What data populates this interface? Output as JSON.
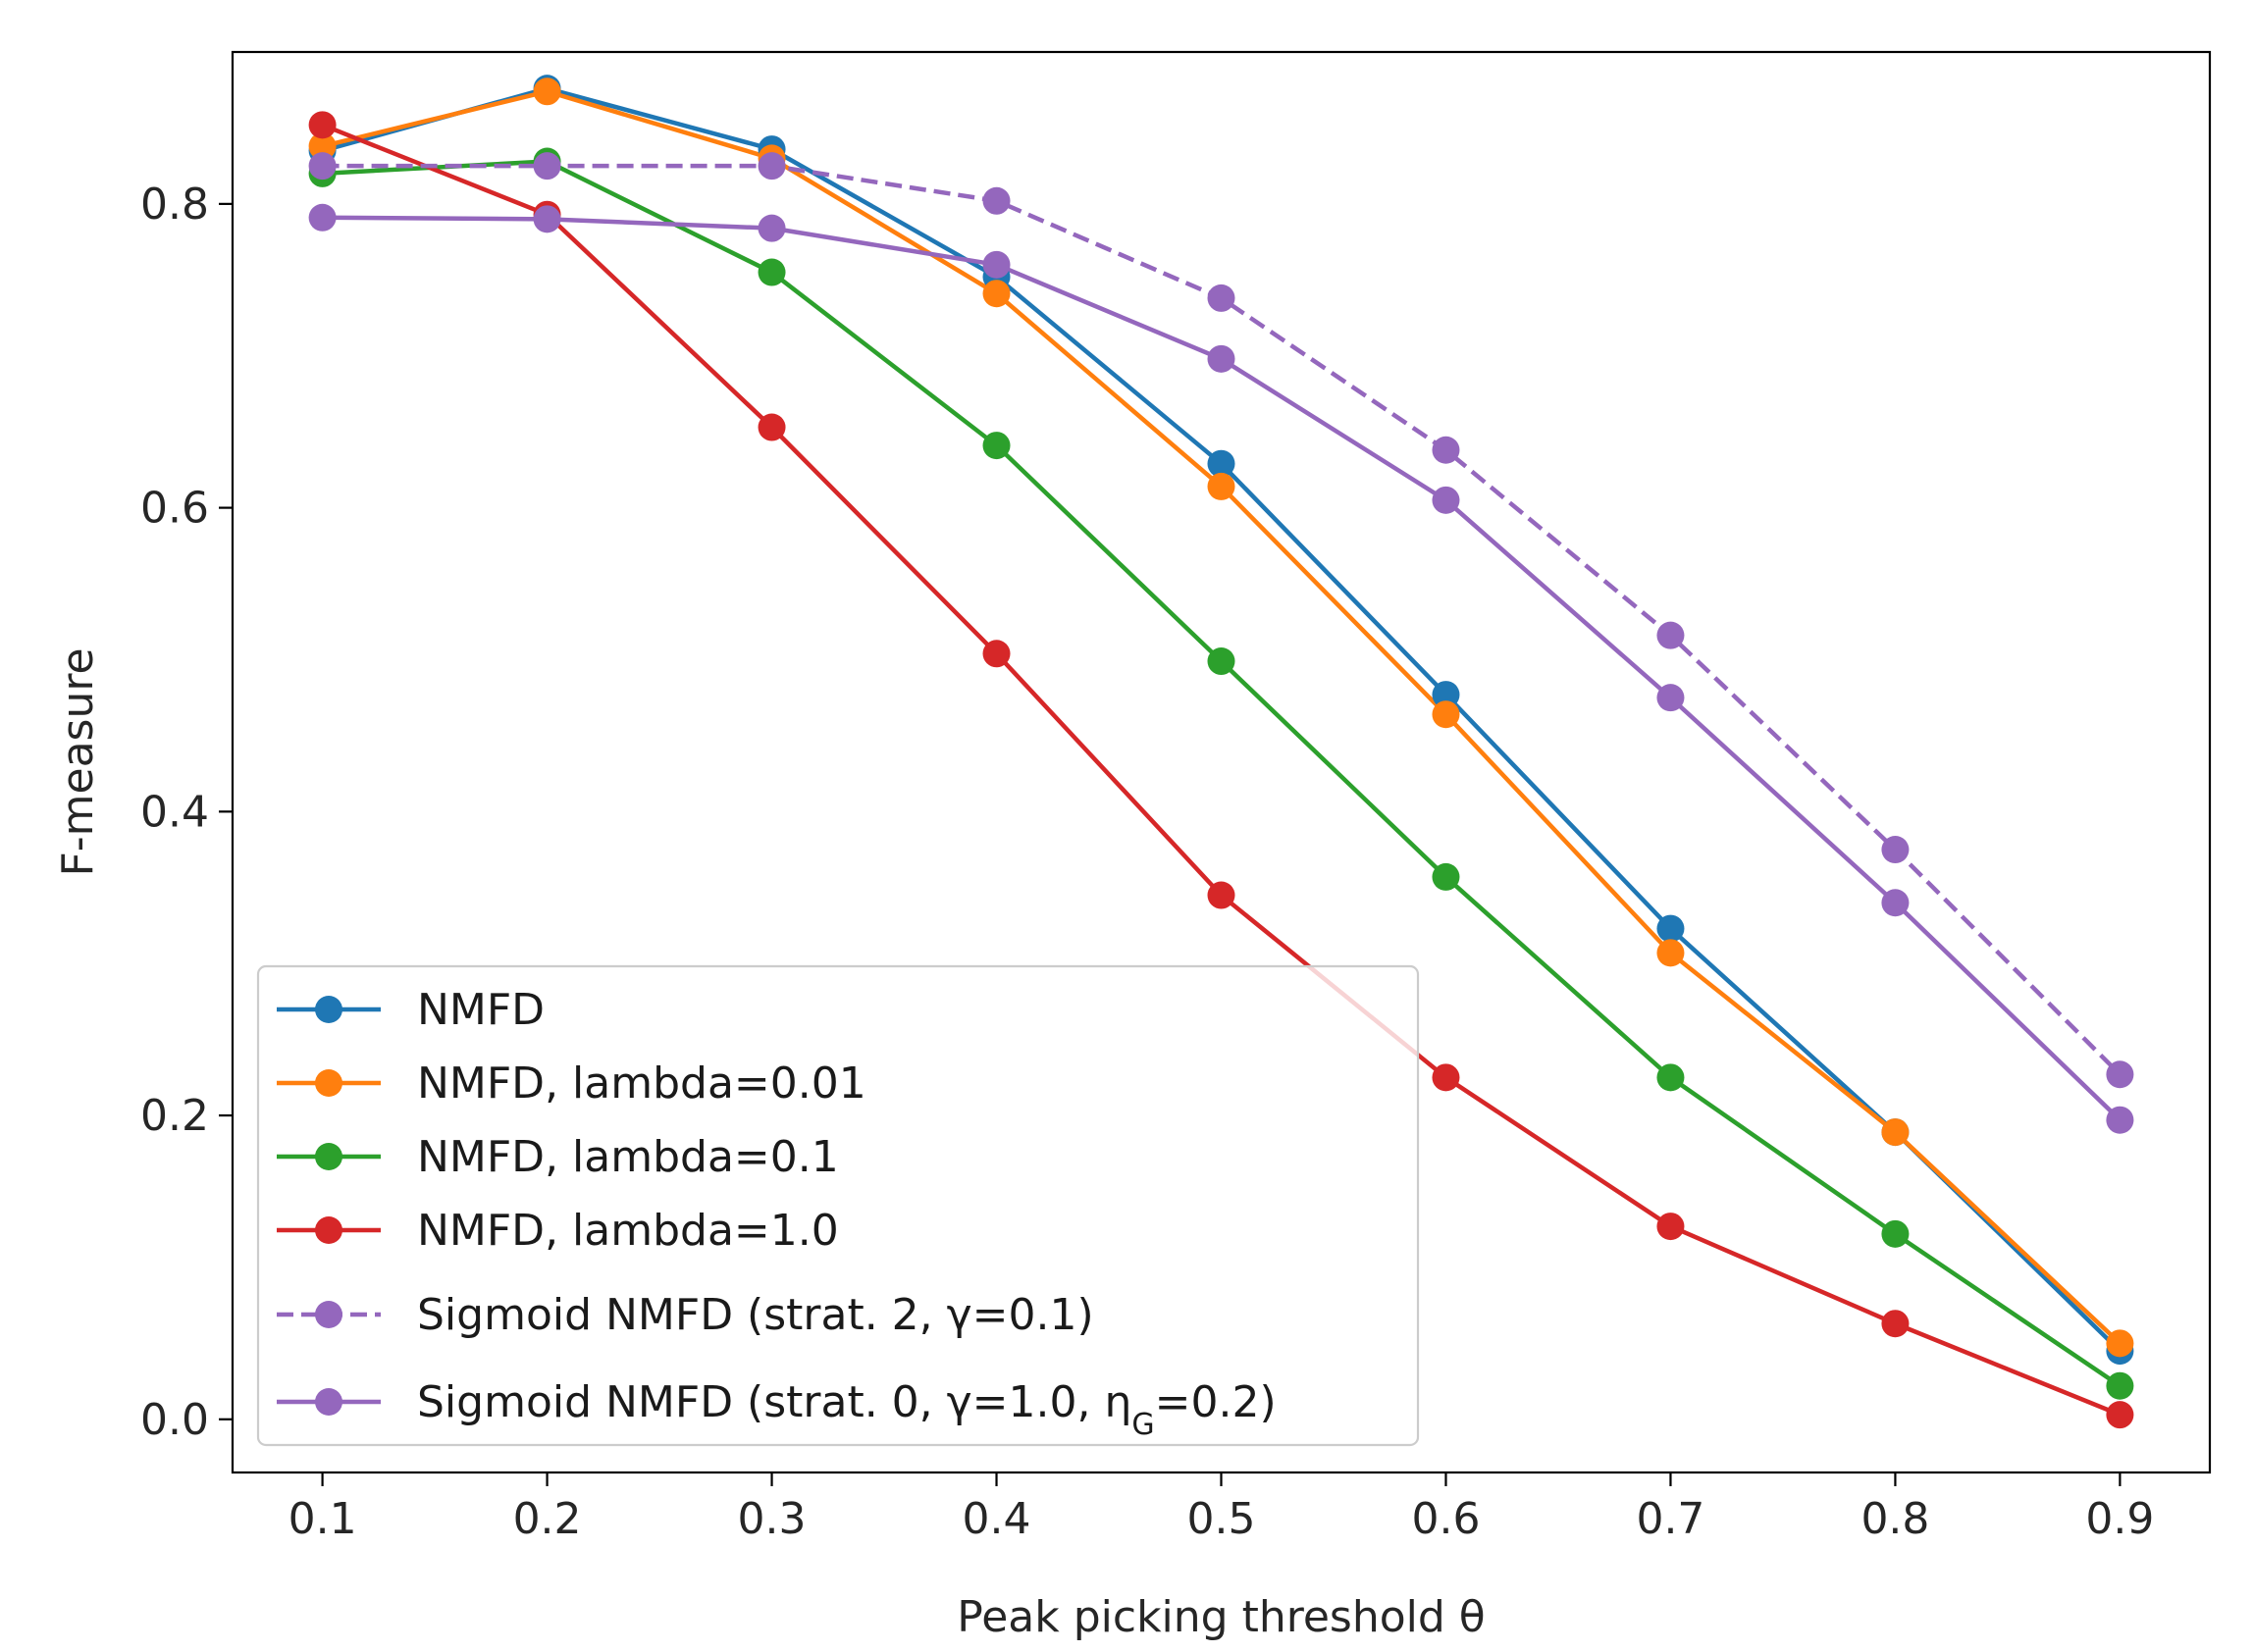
{
  "chart_data": {
    "type": "line",
    "title": "",
    "xlabel": "Peak picking threshold θ",
    "ylabel": "F-measure",
    "x": [
      0.1,
      0.2,
      0.3,
      0.4,
      0.5,
      0.6,
      0.7,
      0.8,
      0.9
    ],
    "xlim": [
      0.06,
      0.94
    ],
    "ylim": [
      -0.035,
      0.9
    ],
    "xticks": [
      "0.1",
      "0.2",
      "0.3",
      "0.4",
      "0.5",
      "0.6",
      "0.7",
      "0.8",
      "0.9"
    ],
    "yticks": [
      "0.0",
      "0.2",
      "0.4",
      "0.6",
      "0.8"
    ],
    "grid": false,
    "legend_position": "lower-left",
    "series": [
      {
        "name": "NMFD",
        "color": "#1f77b4",
        "dashed": false,
        "values": [
          0.835,
          0.876,
          0.836,
          0.752,
          0.629,
          0.477,
          0.323,
          0.189,
          0.045
        ]
      },
      {
        "name": "NMFD, lambda=0.01",
        "color": "#ff7f0e",
        "dashed": false,
        "values": [
          0.838,
          0.874,
          0.83,
          0.741,
          0.614,
          0.464,
          0.307,
          0.189,
          0.05
        ]
      },
      {
        "name": "NMFD, lambda=0.1",
        "color": "#2ca02c",
        "dashed": false,
        "values": [
          0.82,
          0.828,
          0.755,
          0.641,
          0.499,
          0.357,
          0.225,
          0.122,
          0.022
        ]
      },
      {
        "name": "NMFD, lambda=1.0",
        "color": "#d62728",
        "dashed": false,
        "values": [
          0.852,
          0.793,
          0.653,
          0.504,
          0.345,
          0.225,
          0.127,
          0.063,
          0.003
        ]
      },
      {
        "name": "Sigmoid NMFD (strat. 2, γ=0.1)",
        "color": "#9467bd",
        "dashed": true,
        "values": [
          0.825,
          0.825,
          0.825,
          0.802,
          0.738,
          0.638,
          0.516,
          0.375,
          0.227
        ]
      },
      {
        "name": "Sigmoid NMFD (strat. 0, γ=1.0, η",
        "name_subscript": "G",
        "name_suffix": "=0.2)",
        "color": "#9467bd",
        "dashed": false,
        "values": [
          0.791,
          0.79,
          0.784,
          0.76,
          0.698,
          0.605,
          0.475,
          0.34,
          0.197
        ]
      }
    ]
  }
}
